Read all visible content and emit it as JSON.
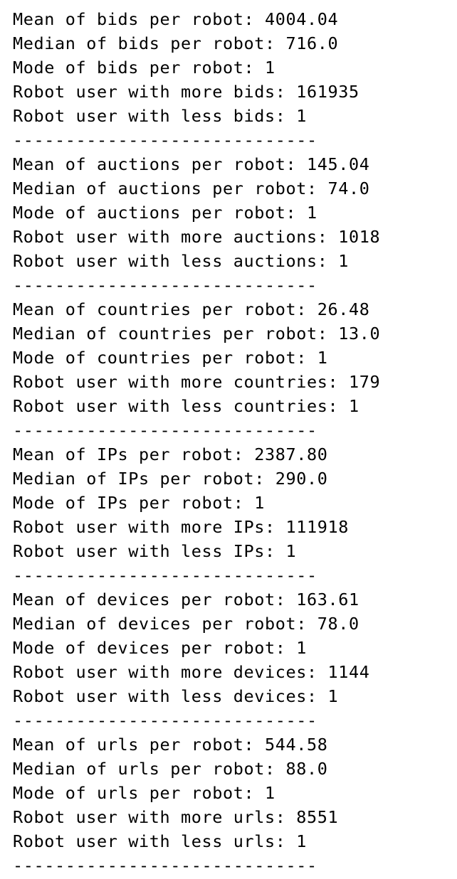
{
  "output": {
    "blocks": [
      {
        "lines": [
          "Mean of bids per robot: 4004.04",
          "Median of bids per robot: 716.0",
          "Mode of bids per robot: 1",
          "Robot user with more bids: 161935",
          "Robot user with less bids: 1"
        ],
        "separator": "-----------------------------"
      },
      {
        "lines": [
          "Mean of auctions per robot: 145.04",
          "Median of auctions per robot: 74.0",
          "Mode of auctions per robot: 1",
          "Robot user with more auctions: 1018",
          "Robot user with less auctions: 1"
        ],
        "separator": "-----------------------------"
      },
      {
        "lines": [
          "Mean of countries per robot: 26.48",
          "Median of countries per robot: 13.0",
          "Mode of countries per robot: 1",
          "Robot user with more countries: 179",
          "Robot user with less countries: 1"
        ],
        "separator": "-----------------------------"
      },
      {
        "lines": [
          "Mean of IPs per robot: 2387.80",
          "Median of IPs per robot: 290.0",
          "Mode of IPs per robot: 1",
          "Robot user with more IPs: 111918",
          "Robot user with less IPs: 1"
        ],
        "separator": "-----------------------------"
      },
      {
        "lines": [
          "Mean of devices per robot: 163.61",
          "Median of devices per robot: 78.0",
          "Mode of devices per robot: 1",
          "Robot user with more devices: 1144",
          "Robot user with less devices: 1"
        ],
        "separator": "-----------------------------"
      },
      {
        "lines": [
          "Mean of urls per robot: 544.58",
          "Median of urls per robot: 88.0",
          "Mode of urls per robot: 1",
          "Robot user with more urls: 8551",
          "Robot user with less urls: 1"
        ],
        "separator": "-----------------------------"
      }
    ]
  }
}
